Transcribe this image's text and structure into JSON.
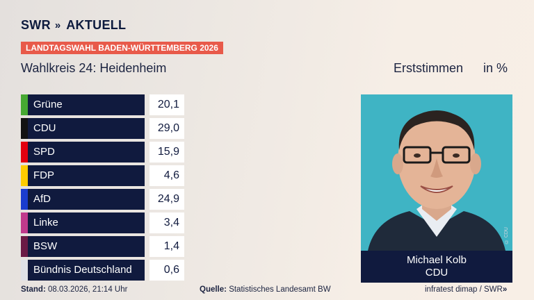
{
  "logo": {
    "text": "SWR",
    "chevrons": "»",
    "suffix": "AKTUELL"
  },
  "banner": "LANDTAGSWAHL BADEN-WÜRTTEMBERG 2026",
  "subtitle": "Wahlkreis 24: Heidenheim",
  "measure": "Erststimmen",
  "unit": "in %",
  "colors": {
    "bar_bg": "#101a3e",
    "banner_bg": "#e85a4a",
    "photo_bg": "#3fb4c4"
  },
  "results": [
    {
      "party": "Grüne",
      "value": "20,1",
      "color": "#46a832"
    },
    {
      "party": "CDU",
      "value": "29,0",
      "color": "#121212"
    },
    {
      "party": "SPD",
      "value": "15,9",
      "color": "#e3000f"
    },
    {
      "party": "FDP",
      "value": "4,6",
      "color": "#ffcc00"
    },
    {
      "party": "AfD",
      "value": "24,9",
      "color": "#1a3ccf"
    },
    {
      "party": "Linke",
      "value": "3,4",
      "color": "#c03a8c"
    },
    {
      "party": "BSW",
      "value": "1,4",
      "color": "#6b1a45"
    },
    {
      "party": "Bündnis Deutschland",
      "value": "0,6",
      "color": "#dfe2e8"
    }
  ],
  "candidate": {
    "name": "Michael Kolb",
    "party": "CDU",
    "photo_credit": "© CDU"
  },
  "footer": {
    "stand_label": "Stand:",
    "stand_value": "08.03.2026, 21:14 Uhr",
    "quelle_label": "Quelle:",
    "quelle_value": "Statistisches Landesamt BW",
    "credit": "infratest dimap / SWR",
    "credit_chevrons": "»"
  }
}
